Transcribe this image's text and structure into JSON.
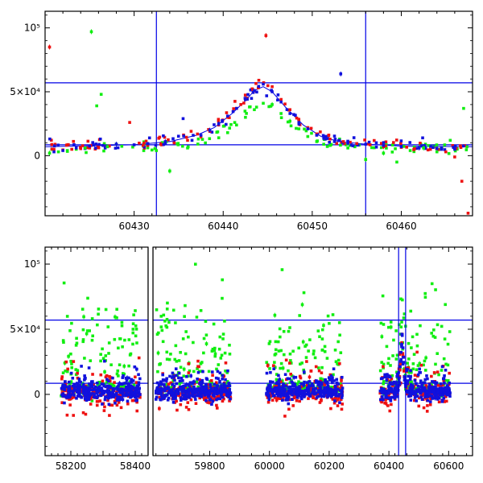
{
  "colors": {
    "red": "#ee1111",
    "green": "#11ee11",
    "blue": "#1111dd",
    "reference": "#0000e6",
    "axis": "#000000"
  },
  "chart_data": [
    {
      "type": "scatter",
      "title": "",
      "xlabel": "",
      "ylabel": "",
      "xlim": [
        60420,
        60468
      ],
      "ylim": [
        -47000,
        113000
      ],
      "x_ticks": [
        60430,
        60440,
        60450,
        60460
      ],
      "y_ticks": [
        {
          "value": 0,
          "label": "0"
        },
        {
          "value": 50000,
          "label": "5×10⁴"
        },
        {
          "value": 100000,
          "label": "10⁵"
        }
      ],
      "grid": false,
      "legend": "none",
      "hlines": [
        57000,
        8500
      ],
      "vlines": [
        60432.5,
        60456.0
      ],
      "model_curve": {
        "color": "blue",
        "x": [
          60420,
          60430,
          60434,
          60437,
          60439,
          60441,
          60442.5,
          60443.5,
          60444.5,
          60445.5,
          60447,
          60449,
          60451,
          60453,
          60456,
          60460,
          60468
        ],
        "y": [
          7000,
          8500,
          11000,
          16000,
          22000,
          33000,
          43000,
          51000,
          54000,
          50000,
          38000,
          24000,
          15000,
          11000,
          9000,
          7500,
          7000
        ]
      },
      "series": [
        {
          "name": "",
          "color": "red",
          "x": [
            60420.5,
            60421,
            60422,
            60423,
            60424,
            60425,
            60426,
            60427,
            60429.5,
            60431,
            60433,
            60434.5,
            60436,
            60437.5,
            60438.5,
            60439.5,
            60440.5,
            60441.5,
            60442.5,
            60443.3,
            60444,
            60444.8,
            60445.5,
            60446.5,
            60447.5,
            60448.5,
            60449.5,
            60450.5,
            60452,
            60453.5,
            60455,
            60456.5,
            60458,
            60460,
            60461.5,
            60463,
            60465,
            60466,
            60466.8,
            60467.5
          ],
          "y": [
            85000,
            5000,
            4500,
            5000,
            5500,
            6000,
            6500,
            7000,
            26000,
            8000,
            9000,
            10000,
            12000,
            15000,
            19000,
            24000,
            30000,
            37000,
            44000,
            52000,
            59000,
            94000,
            54000,
            44000,
            36000,
            28000,
            22000,
            17000,
            13000,
            11000,
            9500,
            8500,
            7000,
            6500,
            5500,
            4500,
            3000,
            -1000,
            -20000,
            -45000
          ]
        },
        {
          "name": "",
          "color": "green",
          "x": [
            60420.5,
            60421.5,
            60422.5,
            60423.5,
            60424.5,
            60425.2,
            60425.8,
            60426.3,
            60427,
            60428,
            60432.5,
            60434,
            60436,
            60438,
            60439.5,
            60440.5,
            60441.5,
            60442.5,
            60443.5,
            60444.5,
            60445.5,
            60446.5,
            60447.5,
            60448.5,
            60449.5,
            60450.5,
            60452,
            60454,
            60456,
            60458,
            60459.5,
            60461,
            60462.5,
            60464,
            60465.5,
            60467
          ],
          "y": [
            2000,
            3000,
            4000,
            5000,
            6000,
            97000,
            39000,
            48000,
            7000,
            9000,
            4000,
            -12000,
            6000,
            10000,
            14000,
            18000,
            24000,
            30000,
            36000,
            41000,
            40000,
            33000,
            27000,
            21000,
            15000,
            11000,
            8000,
            6000,
            -3000,
            2000,
            -5000,
            4000,
            6000,
            3000,
            12000,
            37000
          ]
        },
        {
          "name": "",
          "color": "blue",
          "x": [
            60421,
            60422,
            60423.5,
            60425,
            60426.5,
            60428,
            60430,
            60431.5,
            60433.5,
            60435.5,
            60436.5,
            60437.5,
            60438.5,
            60439.5,
            60440.5,
            60441.5,
            60442.5,
            60443.5,
            60444.5,
            60445.5,
            60446.5,
            60447.5,
            60448.5,
            60449.5,
            60450.5,
            60451.5,
            60452.5,
            60453.2,
            60454,
            60456,
            60458,
            60460,
            60462,
            60464,
            60466
          ],
          "y": [
            3000,
            4000,
            6000,
            7500,
            8000,
            9000,
            8500,
            9500,
            11000,
            29000,
            12000,
            16000,
            20000,
            25000,
            31000,
            37000,
            44000,
            51000,
            56000,
            50000,
            42000,
            33000,
            26000,
            21000,
            16000,
            13000,
            11000,
            64000,
            10000,
            9000,
            8000,
            7000,
            6000,
            5500,
            5000
          ]
        }
      ]
    },
    {
      "type": "scatter",
      "title": "",
      "xlabel": "",
      "ylabel": "",
      "xlim": [
        58120,
        60680
      ],
      "x_axis_break": {
        "from": 58440,
        "to": 59610
      },
      "ylim": [
        -47000,
        113000
      ],
      "x_ticks": [
        58200,
        58300,
        58400,
        59800,
        60000,
        60200,
        60400,
        60600
      ],
      "x_tick_labels": [
        58200,
        58400,
        59800,
        60000,
        60200,
        60400,
        60600
      ],
      "y_ticks": [
        {
          "value": 0,
          "label": "0"
        },
        {
          "value": 50000,
          "label": "5×10⁴"
        },
        {
          "value": 100000,
          "label": "10⁵"
        }
      ],
      "grid": false,
      "legend": "none",
      "hlines": [
        57000,
        8500
      ],
      "vlines": [
        60432.5,
        60456.0
      ],
      "seasons": [
        {
          "start": 58170,
          "end": 58415
        },
        {
          "start": 59620,
          "end": 59870
        },
        {
          "start": 59990,
          "end": 60245
        },
        {
          "start": 60370,
          "end": 60605
        }
      ],
      "series": [
        {
          "name": "",
          "color": "red",
          "typical_level": 3000,
          "scatter": 14000
        },
        {
          "name": "",
          "color": "green",
          "typical_level": 14000,
          "scatter": 26000
        },
        {
          "name": "",
          "color": "blue",
          "typical_level": 5000,
          "scatter": 9000
        }
      ]
    }
  ]
}
